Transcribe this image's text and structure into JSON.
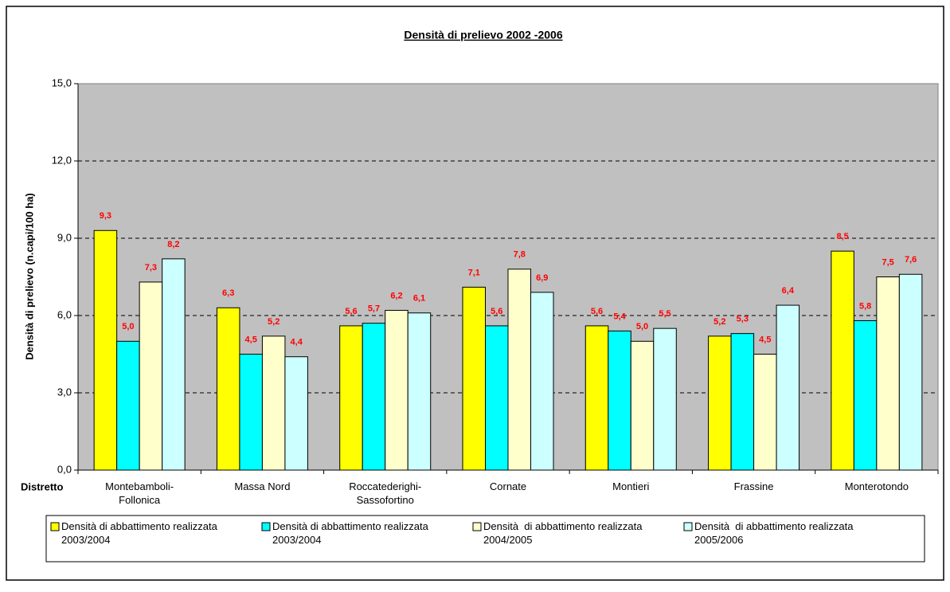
{
  "chart_data": {
    "type": "bar",
    "title": "Densità di prelievo 2002 -2006",
    "y_label": "Densità di prelievo (n.capi/100 ha)",
    "x_label": "Distretto",
    "categories": [
      "Montebamboli-\nFollonica",
      "Massa Nord",
      "Roccatederighi-\nSassofortino",
      "Cornate",
      "Montieri",
      "Frassine",
      "Monterotondo"
    ],
    "series": [
      {
        "name": "Densità di abbattimento realizzata 2003/2004",
        "color": "#ffff00",
        "values": [
          9.3,
          6.3,
          5.6,
          7.1,
          5.6,
          5.2,
          8.5
        ],
        "value_labels": [
          "9,3",
          "6,3",
          "5,6",
          "7,1",
          "5,6",
          "5,2",
          "8,5"
        ]
      },
      {
        "name": "Densità di abbattimento realizzata 2003/2004",
        "color": "#00ffff",
        "values": [
          5.0,
          4.5,
          5.7,
          5.6,
          5.4,
          5.3,
          5.8
        ],
        "value_labels": [
          "5,0",
          "4,5",
          "5,7",
          "5,6",
          "5,4",
          "5,3",
          "5,8"
        ]
      },
      {
        "name": "Densità  di abbattimento realizzata 2004/2005",
        "color": "#ffffcc",
        "values": [
          7.3,
          5.2,
          6.2,
          7.8,
          5.0,
          4.5,
          7.5
        ],
        "value_labels": [
          "7,3",
          "5,2",
          "6,2",
          "7,8",
          "5,0",
          "4,5",
          "7,5"
        ]
      },
      {
        "name": "Densità  di abbattimento realizzata 2005/2006",
        "color": "#ccffff",
        "values": [
          8.2,
          4.4,
          6.1,
          6.9,
          5.5,
          6.4,
          7.6
        ],
        "value_labels": [
          "8,2",
          "4,4",
          "6,1",
          "6,9",
          "5,5",
          "6,4",
          "7,6"
        ]
      }
    ],
    "ylim": [
      0,
      15
    ],
    "yticks": [
      {
        "value": 0,
        "label": "0,0"
      },
      {
        "value": 3,
        "label": "3,0"
      },
      {
        "value": 6,
        "label": "6,0"
      },
      {
        "value": 9,
        "label": "9,0"
      },
      {
        "value": 12,
        "label": "12,0"
      },
      {
        "value": 15,
        "label": "15,0"
      }
    ],
    "grid": true,
    "plot_background": "#c0c0c0",
    "label_color": "#ff0000",
    "legend": "bottom"
  }
}
